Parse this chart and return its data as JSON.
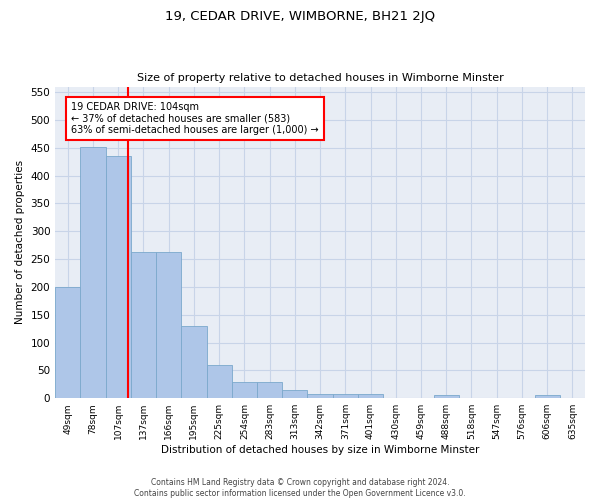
{
  "title": "19, CEDAR DRIVE, WIMBORNE, BH21 2JQ",
  "subtitle": "Size of property relative to detached houses in Wimborne Minster",
  "xlabel": "Distribution of detached houses by size in Wimborne Minster",
  "ylabel": "Number of detached properties",
  "footer_line1": "Contains HM Land Registry data © Crown copyright and database right 2024.",
  "footer_line2": "Contains public sector information licensed under the Open Government Licence v3.0.",
  "categories": [
    "49sqm",
    "78sqm",
    "107sqm",
    "137sqm",
    "166sqm",
    "195sqm",
    "225sqm",
    "254sqm",
    "283sqm",
    "313sqm",
    "342sqm",
    "371sqm",
    "401sqm",
    "430sqm",
    "459sqm",
    "488sqm",
    "518sqm",
    "547sqm",
    "576sqm",
    "606sqm",
    "635sqm"
  ],
  "values": [
    199,
    452,
    435,
    263,
    263,
    129,
    60,
    29,
    29,
    14,
    8,
    7,
    7,
    0,
    0,
    6,
    0,
    0,
    0,
    6,
    0
  ],
  "bar_color": "#aec6e8",
  "bar_edge_color": "#7ba8cc",
  "grid_color": "#c8d4e8",
  "background_color": "#e8edf5",
  "vline_x": 2.37,
  "vline_color": "red",
  "annotation_text": "19 CEDAR DRIVE: 104sqm\n← 37% of detached houses are smaller (583)\n63% of semi-detached houses are larger (1,000) →",
  "annotation_box_color": "white",
  "annotation_box_edge_color": "red",
  "ylim": [
    0,
    560
  ],
  "yticks": [
    0,
    50,
    100,
    150,
    200,
    250,
    300,
    350,
    400,
    450,
    500,
    550
  ]
}
